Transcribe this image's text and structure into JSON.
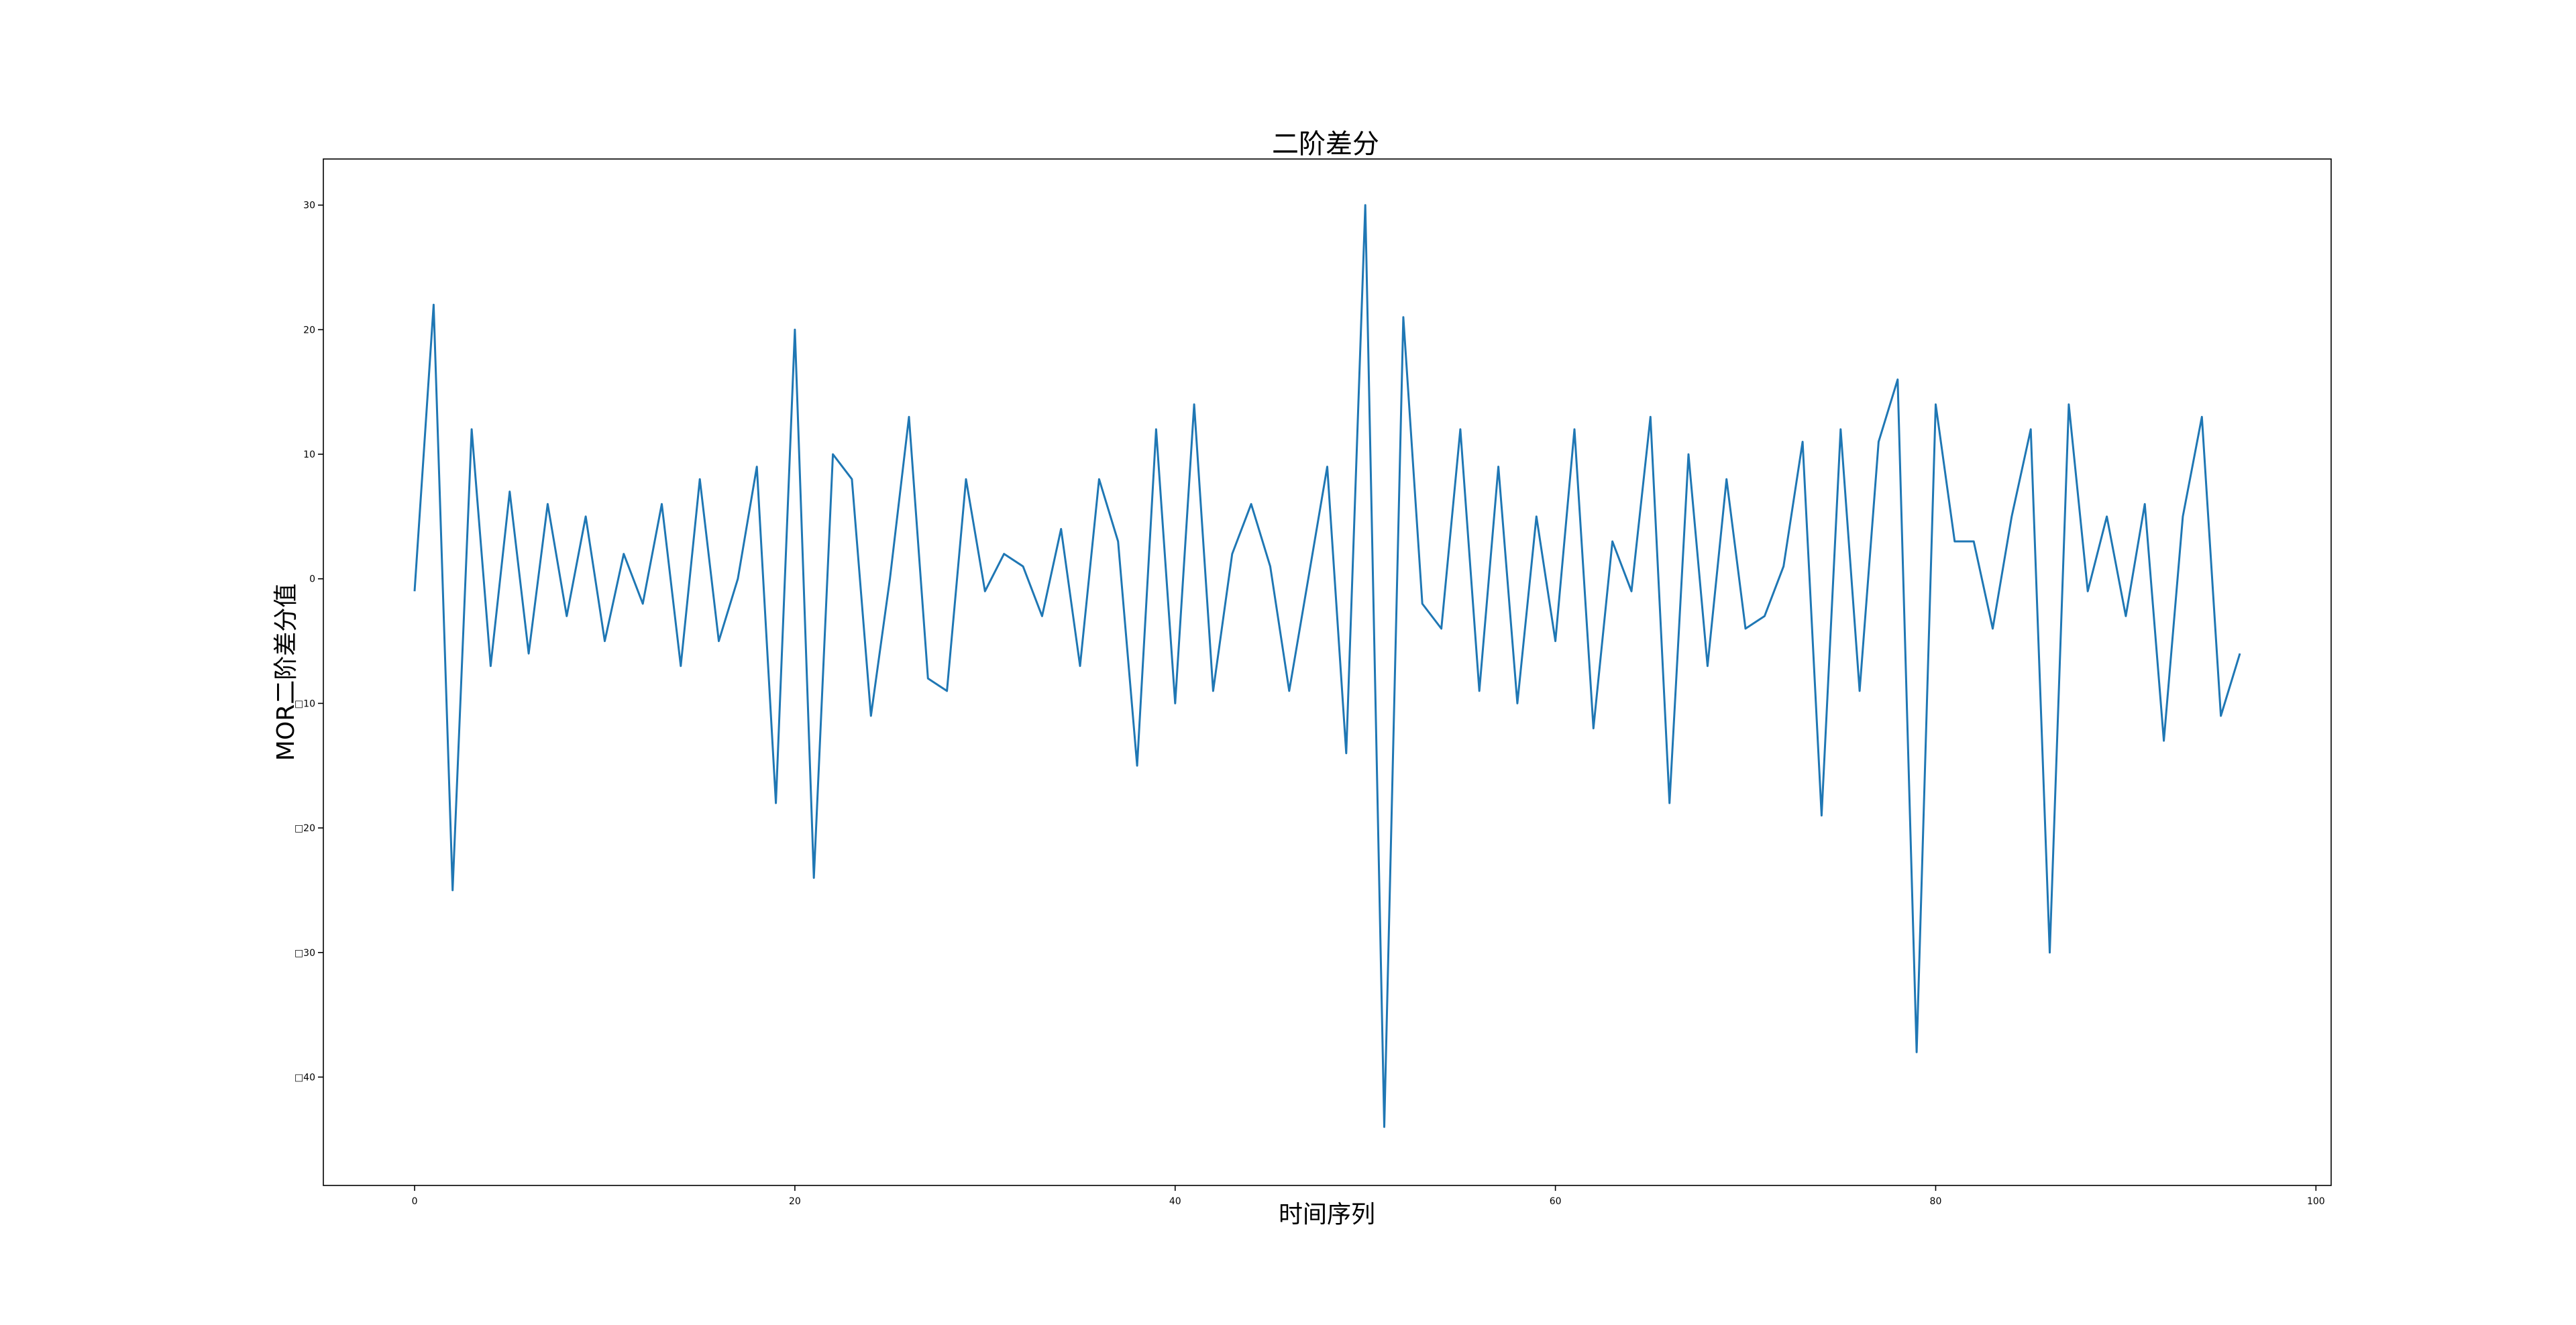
{
  "chart_data": {
    "type": "line",
    "title": "二阶差分",
    "xlabel": "时间序列",
    "ylabel": "MOR二阶差分值",
    "xlim": [
      -4.8,
      100.8
    ],
    "ylim": [
      -48.7,
      33.7
    ],
    "x_ticks": [
      0,
      20,
      40,
      60,
      80,
      100
    ],
    "x_tick_labels": [
      "0",
      "20",
      "40",
      "60",
      "80",
      "100"
    ],
    "y_ticks": [
      30,
      20,
      10,
      0,
      -10,
      -20,
      -30,
      -40
    ],
    "y_tick_labels": [
      "30",
      "20",
      "10",
      "0",
      "□10",
      "□20",
      "□30",
      "□40"
    ],
    "grid": false,
    "series": [
      {
        "color": "#1f77b4",
        "x": [
          0,
          1,
          2,
          3,
          4,
          5,
          6,
          7,
          8,
          9,
          10,
          11,
          12,
          13,
          14,
          15,
          16,
          17,
          18,
          19,
          20,
          21,
          22,
          23,
          24,
          25,
          26,
          27,
          28,
          29,
          30,
          31,
          32,
          33,
          34,
          35,
          36,
          37,
          38,
          39,
          40,
          41,
          42,
          43,
          44,
          45,
          46,
          47,
          48,
          49,
          50,
          51,
          52,
          53,
          54,
          55,
          56,
          57,
          58,
          59,
          60,
          61,
          62,
          63,
          64,
          65,
          66,
          67,
          68,
          69,
          70,
          71,
          72,
          73,
          74,
          75,
          76,
          77,
          78,
          79,
          80,
          81,
          82,
          83,
          84,
          85,
          86,
          87,
          88,
          89,
          90,
          91,
          92,
          93,
          94,
          95,
          96
        ],
        "y": [
          -1,
          22,
          -25,
          12,
          -7,
          7,
          -6,
          6,
          -3,
          5,
          -5,
          2,
          -2,
          6,
          -7,
          8,
          -5,
          0,
          9,
          -18,
          20,
          -24,
          10,
          8,
          -11,
          0,
          13,
          -8,
          -9,
          8,
          -1,
          2,
          1,
          -3,
          4,
          -7,
          8,
          3,
          -15,
          12,
          -10,
          14,
          -9,
          2,
          6,
          1,
          -9,
          0,
          9,
          -14,
          30,
          -44,
          21,
          -2,
          -4,
          12,
          -9,
          9,
          -10,
          5,
          -5,
          12,
          -12,
          3,
          -1,
          13,
          -18,
          10,
          -7,
          8,
          -4,
          -3,
          1,
          11,
          -19,
          12,
          -9,
          11,
          16,
          -38,
          14,
          3,
          3,
          -4,
          5,
          12,
          -30,
          14,
          -1,
          5,
          -3,
          6,
          -13,
          5,
          13,
          -11,
          -6
        ]
      }
    ]
  }
}
